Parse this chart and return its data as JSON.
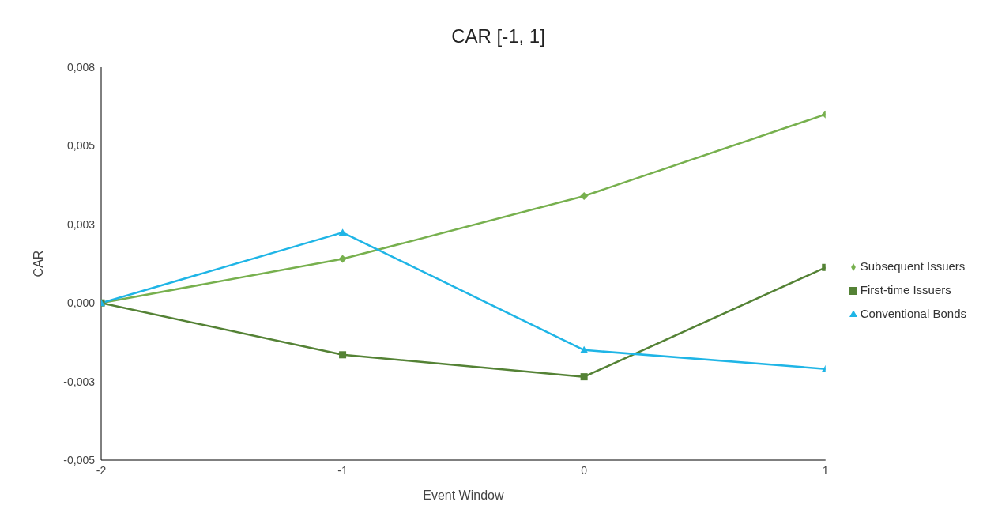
{
  "chart_data": {
    "type": "line",
    "title": "CAR [-1, 1]",
    "xlabel": "Event Window",
    "ylabel": "CAR",
    "x": [
      -2,
      -1,
      0,
      1
    ],
    "xlim": [
      -2,
      1
    ],
    "xticks": [
      -2,
      -1,
      0,
      1
    ],
    "ylim": [
      -0.005,
      0.0075
    ],
    "yticks": [
      {
        "value": -0.005,
        "label": "-0,005"
      },
      {
        "value": -0.0025,
        "label": "-0,003"
      },
      {
        "value": 0,
        "label": "0,000"
      },
      {
        "value": 0.0025,
        "label": "0,003"
      },
      {
        "value": 0.005,
        "label": "0,005"
      },
      {
        "value": 0.0075,
        "label": "0,008"
      }
    ],
    "grid": false,
    "legend": "right",
    "line_style": "solid",
    "series": [
      {
        "name": "Subsequent Issuers",
        "color": "#77b04e",
        "marker": "diamond",
        "values": [
          0,
          0.0014,
          0.0034,
          0.006
        ]
      },
      {
        "name": "First-time Issuers",
        "color": "#548235",
        "marker": "square",
        "values": [
          0,
          -0.00165,
          -0.00235,
          0.00113
        ]
      },
      {
        "name": "Conventional Bonds",
        "color": "#1fb5e6",
        "marker": "triangle",
        "values": [
          0,
          0.00224,
          -0.0015,
          -0.0021
        ]
      }
    ]
  }
}
